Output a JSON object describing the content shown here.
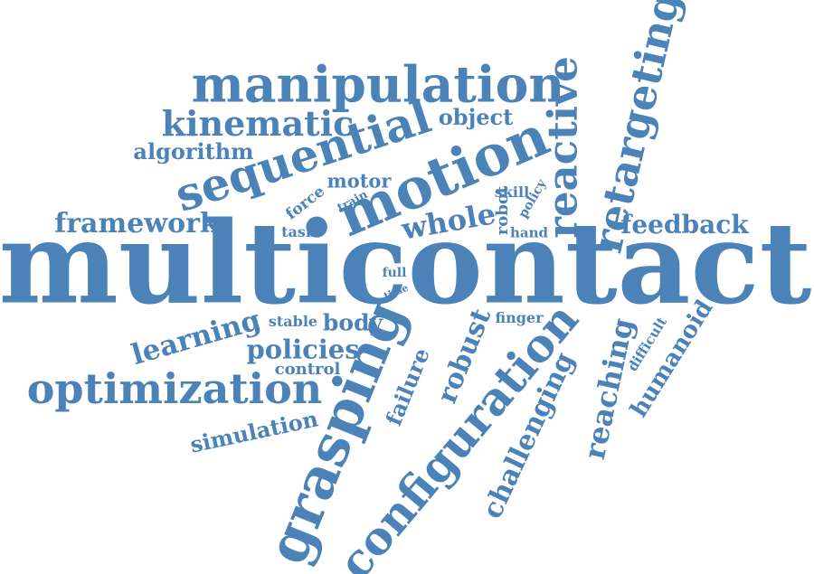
{
  "color": "#4b82b8",
  "words": {
    "multicontact": "multicontact",
    "grasping": "grasping",
    "configuration": "configuration",
    "motion": "motion",
    "manipulation": "manipulation",
    "sequential": "sequential",
    "optimization": "optimization",
    "retargeting": "retargeting",
    "reactive": "reactive",
    "kinematic": "kinematic",
    "framework": "framework",
    "feedback": "feedback",
    "whole": "whole",
    "learning": "learning",
    "policies": "policies",
    "robust": "robust",
    "reaching": "reaching",
    "challenging": "challenging",
    "humanoid": "humanoid",
    "simulation": "simulation",
    "algorithm": "algorithm",
    "object": "object",
    "body": "body",
    "failure": "failure",
    "control": "control",
    "force": "force",
    "motor": "motor",
    "skill": "skill",
    "robot": "robot",
    "policy": "policy",
    "train": "train",
    "task": "task",
    "hand": "hand",
    "finger": "finger",
    "stable": "stable",
    "full": "full",
    "time": "time",
    "difficult": "difficult"
  }
}
